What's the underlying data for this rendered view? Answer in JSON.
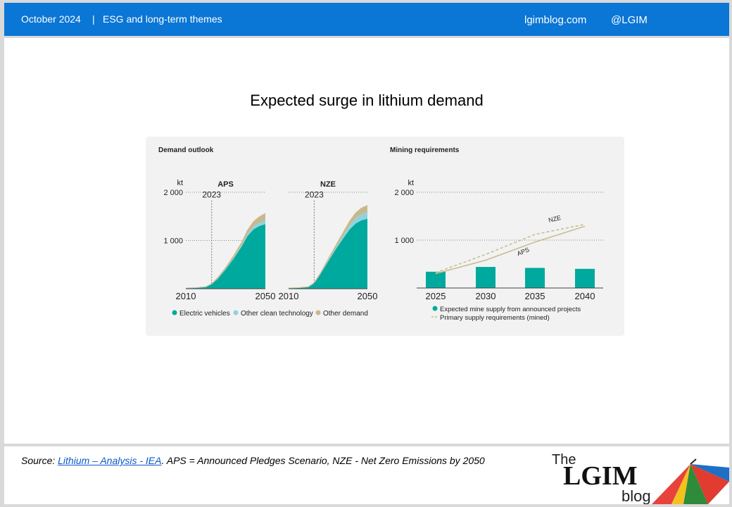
{
  "header": {
    "date": "October 2024",
    "separator": "|",
    "theme": "ESG and long-term themes",
    "site": "lgimblog.com",
    "handle": "@LGIM"
  },
  "slide": {
    "title": "Expected surge in lithium demand"
  },
  "footer": {
    "source_prefix": "Source: ",
    "source_link": "Lithium – Analysis - IEA",
    "source_rest": ". APS = Announced Pledges Scenario, NZE - Net Zero Emissions by 2050",
    "logo_the": "The",
    "logo_main": "LGIM",
    "logo_blog": "blog"
  },
  "colors": {
    "ev": "#00a99d",
    "other_clean": "#8ed3e0",
    "other_demand": "#c8b98c",
    "supply_line": "#c4bc8a",
    "grid": "#888888",
    "bar": "#00a99d"
  },
  "chart_data": [
    {
      "type": "area",
      "section_title": "Demand outlook",
      "title": "APS",
      "yunit": "kt",
      "ylim": [
        0,
        2000
      ],
      "yticks": [
        1000,
        2000
      ],
      "ytick_labels": [
        "1 000",
        "2 000"
      ],
      "xlim": [
        2010,
        2050
      ],
      "xtick_labels": [
        "2010",
        "2050"
      ],
      "annotation": "2023",
      "annotation_x": 2023,
      "x": [
        2010,
        2015,
        2020,
        2023,
        2026,
        2030,
        2034,
        2038,
        2041,
        2044,
        2047,
        2050
      ],
      "series": [
        {
          "name": "Electric vehicles",
          "color": "#00a99d",
          "values": [
            10,
            15,
            30,
            90,
            200,
            400,
            620,
            870,
            1090,
            1230,
            1300,
            1340
          ]
        },
        {
          "name": "Other clean technology",
          "color": "#8ed3e0",
          "values": [
            0,
            1,
            2,
            4,
            6,
            10,
            18,
            30,
            45,
            60,
            70,
            80
          ]
        },
        {
          "name": "Other demand",
          "color": "#c8b98c",
          "values": [
            10,
            12,
            15,
            20,
            30,
            40,
            55,
            70,
            90,
            110,
            130,
            150
          ]
        }
      ],
      "legend": [
        "Electric vehicles",
        "Other clean technology",
        "Other demand"
      ]
    },
    {
      "type": "area",
      "title": "NZE",
      "yunit": "",
      "ylim": [
        0,
        2000
      ],
      "xlim": [
        2010,
        2050
      ],
      "xtick_labels": [
        "2010",
        "2050"
      ],
      "annotation": "2023",
      "annotation_x": 2023,
      "x": [
        2010,
        2015,
        2020,
        2023,
        2026,
        2030,
        2034,
        2038,
        2041,
        2044,
        2047,
        2050
      ],
      "series": [
        {
          "name": "Electric vehicles",
          "color": "#00a99d",
          "values": [
            10,
            15,
            30,
            110,
            290,
            560,
            820,
            1060,
            1230,
            1350,
            1420,
            1450
          ]
        },
        {
          "name": "Other clean technology",
          "color": "#8ed3e0",
          "values": [
            0,
            1,
            2,
            4,
            8,
            18,
            35,
            60,
            85,
            110,
            125,
            135
          ]
        },
        {
          "name": "Other demand",
          "color": "#c8b98c",
          "values": [
            10,
            12,
            15,
            20,
            30,
            45,
            60,
            80,
            100,
            120,
            135,
            150
          ]
        }
      ]
    },
    {
      "type": "bar",
      "section_title": "Mining requirements",
      "yunit": "kt",
      "ylim": [
        0,
        2000
      ],
      "yticks": [
        1000,
        2000
      ],
      "ytick_labels": [
        "1 000",
        "2 000"
      ],
      "categories": [
        "2025",
        "2030",
        "2035",
        "2040"
      ],
      "bars": {
        "name": "Expected mine supply from announced projects",
        "values": [
          340,
          440,
          420,
          400
        ]
      },
      "lines": [
        {
          "name": "NZE",
          "style": "dashed",
          "x": [
            2025,
            2030,
            2035,
            2040
          ],
          "values": [
            320,
            700,
            1120,
            1330
          ]
        },
        {
          "name": "APS",
          "style": "solid",
          "x": [
            2025,
            2030,
            2035,
            2040
          ],
          "values": [
            300,
            580,
            960,
            1290
          ]
        }
      ],
      "legend": [
        "Expected mine supply from announced projects",
        "Primary supply requirements (mined)"
      ]
    }
  ]
}
